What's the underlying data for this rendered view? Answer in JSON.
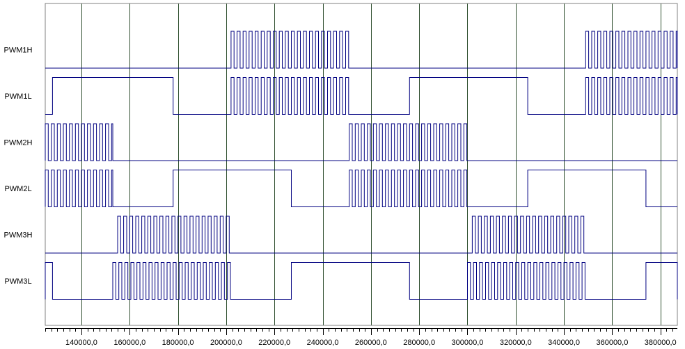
{
  "chart_data": {
    "type": "line",
    "subtype": "digital-timing-diagram",
    "title": "",
    "xlabel": "",
    "ylabel": "",
    "xlim": [
      125000,
      387000
    ],
    "x_ticks": [
      140000,
      160000,
      180000,
      200000,
      220000,
      240000,
      260000,
      280000,
      300000,
      320000,
      340000,
      360000,
      380000
    ],
    "x_tick_labels": [
      "140000,0",
      "160000,0",
      "180000,0",
      "200000,0",
      "220000,0",
      "240000,0",
      "260000,0",
      "280000,0",
      "300000,0",
      "320000,0",
      "340000,0",
      "360000,0",
      "380000,0"
    ],
    "grid": true,
    "line_color": "#000080",
    "grid_color": "#2f4f2f",
    "pwm_period": 2500,
    "series": [
      {
        "name": "PWM1H",
        "bursts": [
          {
            "start": 202000,
            "end": 251000,
            "duty": 0.5
          },
          {
            "start": 349000,
            "end": 387000,
            "duty": 0.5
          }
        ],
        "high_intervals": []
      },
      {
        "name": "PWM1L",
        "bursts": [
          {
            "start": 202000,
            "end": 251000,
            "duty": 0.5
          },
          {
            "start": 349000,
            "end": 387000,
            "duty": 0.5
          }
        ],
        "high_intervals": [
          [
            128000,
            178000
          ],
          [
            276000,
            325000
          ]
        ]
      },
      {
        "name": "PWM2H",
        "bursts": [
          {
            "start": 125000,
            "end": 153000,
            "duty": 0.5
          },
          {
            "start": 251000,
            "end": 300000,
            "duty": 0.5
          }
        ],
        "high_intervals": []
      },
      {
        "name": "PWM2L",
        "bursts": [
          {
            "start": 125000,
            "end": 153000,
            "duty": 0.5
          },
          {
            "start": 251000,
            "end": 300000,
            "duty": 0.5
          }
        ],
        "high_intervals": [
          [
            178000,
            227000
          ],
          [
            325000,
            374000
          ]
        ]
      },
      {
        "name": "PWM3H",
        "bursts": [
          {
            "start": 155000,
            "end": 202000,
            "duty": 0.5
          },
          {
            "start": 302000,
            "end": 349000,
            "duty": 0.5
          }
        ],
        "high_intervals": []
      },
      {
        "name": "PWM3L",
        "bursts": [
          {
            "start": 153000,
            "end": 202000,
            "duty": 0.5
          },
          {
            "start": 300000,
            "end": 349000,
            "duty": 0.5
          }
        ],
        "high_intervals": [
          [
            125000,
            128000
          ],
          [
            227000,
            276000
          ],
          [
            374000,
            387000
          ]
        ]
      }
    ]
  }
}
